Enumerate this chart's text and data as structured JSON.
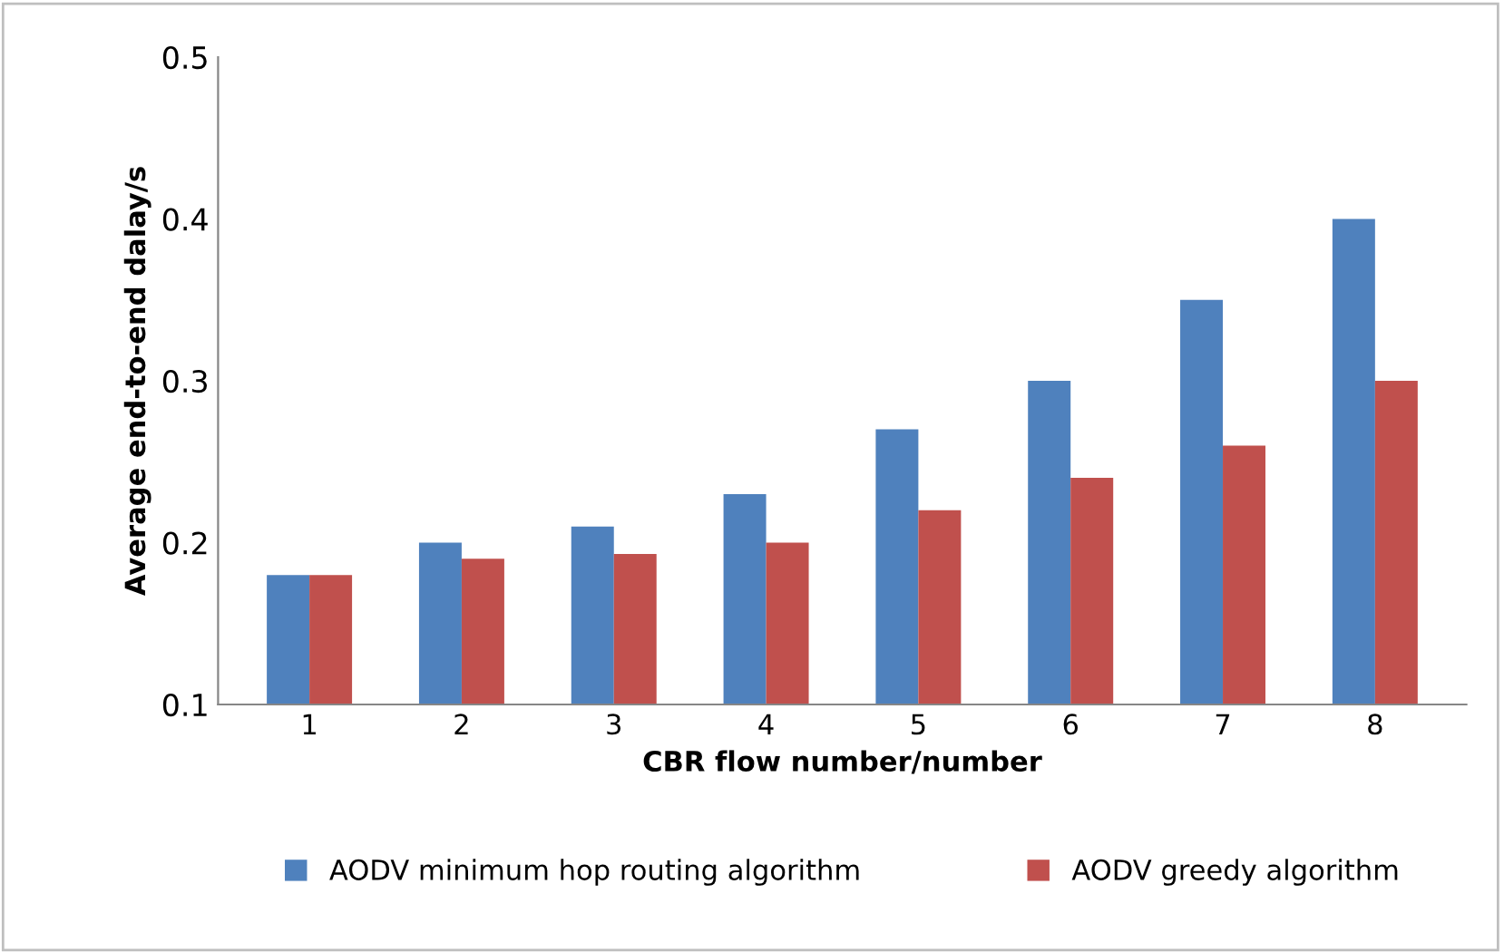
{
  "chart_data": {
    "type": "bar",
    "xlabel": "CBR flow number/number",
    "ylabel": "Average end-to-end dalay/s",
    "categories": [
      "1",
      "2",
      "3",
      "4",
      "5",
      "6",
      "7",
      "8"
    ],
    "series": [
      {
        "name": "AODV minimum hop routing algorithm",
        "color": "#4f81bd",
        "values": [
          0.18,
          0.2,
          0.21,
          0.23,
          0.27,
          0.3,
          0.35,
          0.4
        ]
      },
      {
        "name": "AODV greedy algorithm",
        "color": "#c0504d",
        "values": [
          0.18,
          0.19,
          0.193,
          0.2,
          0.22,
          0.24,
          0.26,
          0.3
        ]
      }
    ],
    "ylim": [
      0.1,
      0.5
    ],
    "yticks": [
      0.1,
      0.2,
      0.3,
      0.4,
      0.5
    ],
    "grid": false,
    "legend": "bottom"
  }
}
